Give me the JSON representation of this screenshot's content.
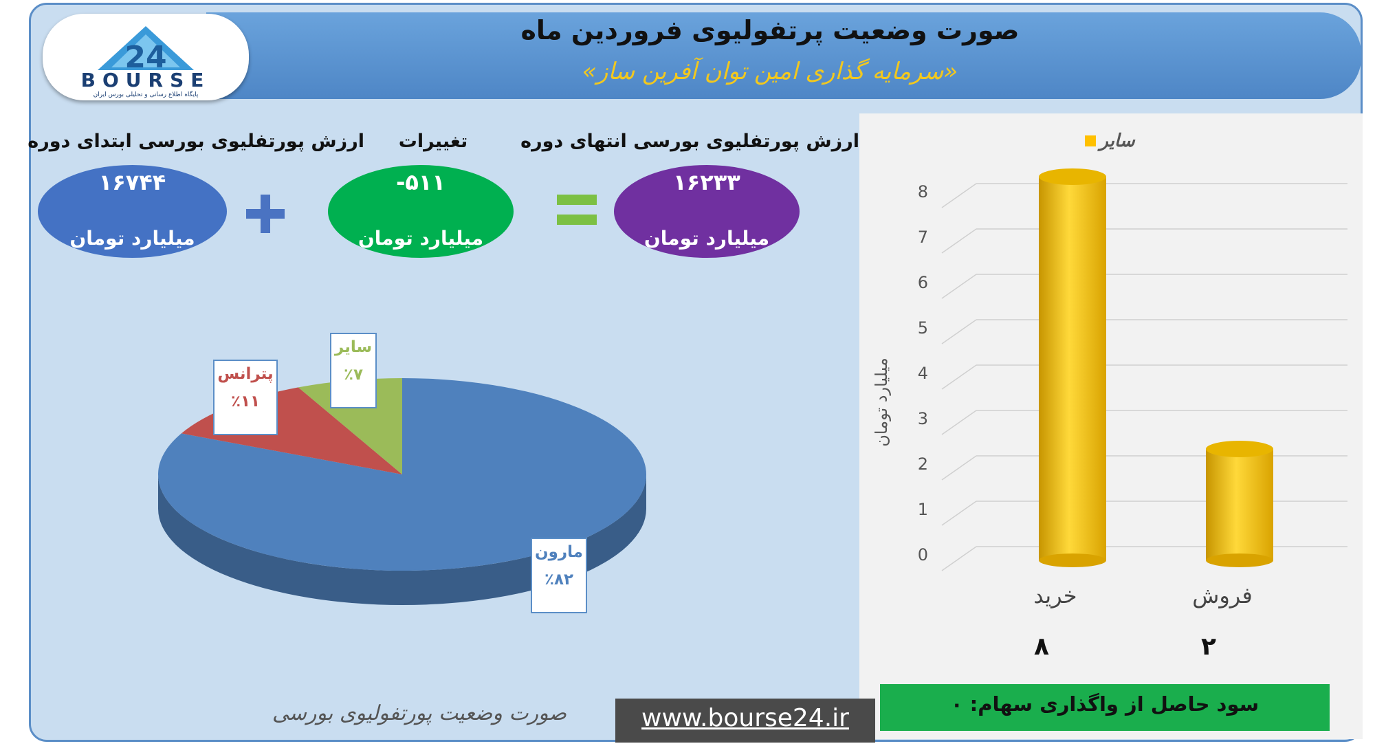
{
  "header": {
    "title": "صورت وضعیت پرتفولیوی فروردین ماه",
    "subtitle": "«سرمایه گذاری امین توان آفرین ساز»"
  },
  "logo": {
    "text": "BOURSE",
    "number": "24",
    "tagline": "پایگاه اطلاع رسانی و تحلیلی بورس ایران"
  },
  "summary": {
    "start": {
      "label": "ارزش پورتفلیوی بورسی ابتدای دوره",
      "value": "۱۶۷۴۴",
      "unit": "میلیارد تومان",
      "color": "#4472c4"
    },
    "change": {
      "label": "تغییرات",
      "value": "-۵۱۱",
      "unit": "میلیارد تومان",
      "color": "#00b050"
    },
    "end": {
      "label": "ارزش پورتفلیوی بورسی انتهای دوره",
      "value": "۱۶۲۳۳",
      "unit": "میلیارد تومان",
      "color": "#7030a0"
    },
    "plus_color": "#4a73c2",
    "equals_color": "#7cc043"
  },
  "chart_data": [
    {
      "type": "pie",
      "slices": [
        {
          "label": "مارون",
          "value": 82,
          "value_label": "٪۸۲",
          "color": "#4f81bd"
        },
        {
          "label": "پترانس",
          "value": 11,
          "value_label": "٪۱۱",
          "color": "#c0504d"
        },
        {
          "label": "سایر",
          "value": 7,
          "value_label": "٪۷",
          "color": "#9bbb59"
        }
      ],
      "caption": "صورت وضعیت پورتفولیوی بورسی"
    },
    {
      "type": "bar",
      "categories": [
        "خرید",
        "فروش"
      ],
      "series": [
        {
          "name": "سایر",
          "values": [
            8,
            2
          ],
          "value_labels": [
            "۸",
            "۲"
          ],
          "color": "#ffc000"
        }
      ],
      "ylabel": "میلیارد تومان",
      "ylim": [
        0,
        8
      ],
      "yticks": [
        "0",
        "1",
        "2",
        "3",
        "4",
        "5",
        "6",
        "7",
        "8"
      ],
      "legend": "top"
    }
  ],
  "footer": {
    "profit_text": "سود حاصل از واگذاری سهام: ۰",
    "website": "www.bourse24.ir"
  }
}
